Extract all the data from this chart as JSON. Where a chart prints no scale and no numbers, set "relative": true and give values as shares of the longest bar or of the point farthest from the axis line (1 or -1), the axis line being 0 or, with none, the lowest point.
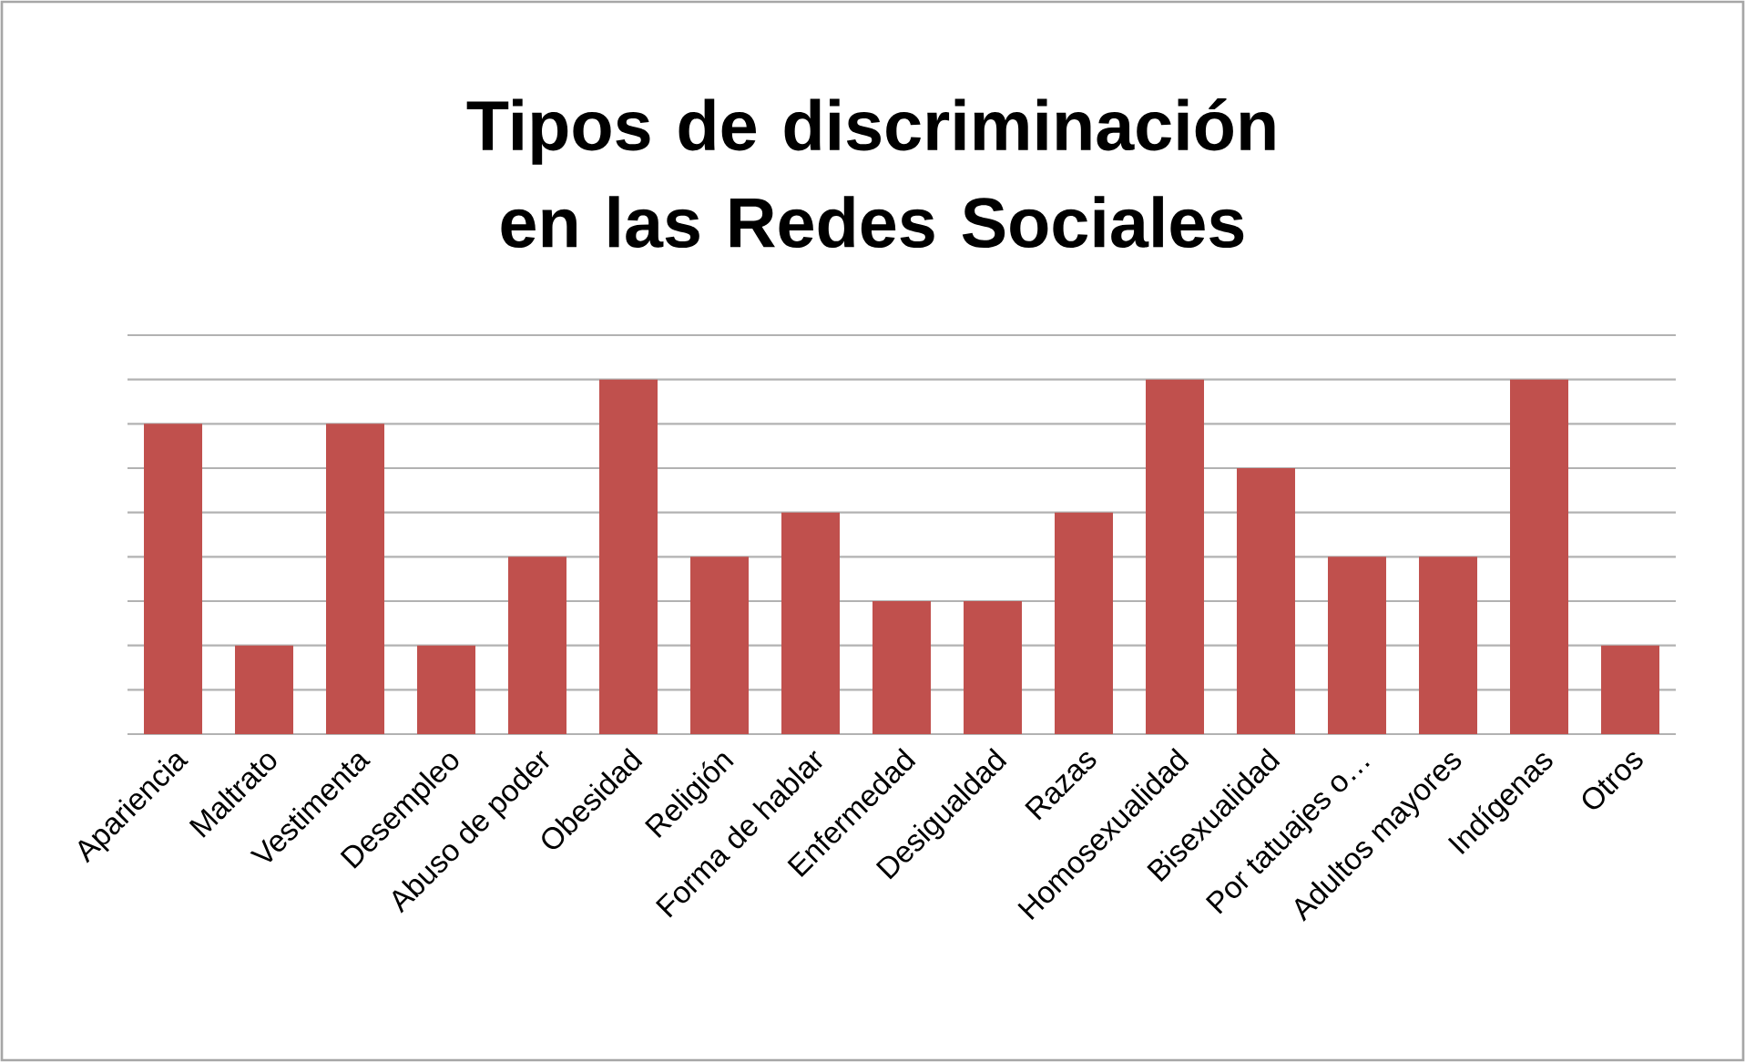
{
  "chart_data": {
    "type": "bar",
    "title": "Tipos de discriminación en las Redes Sociales",
    "categories": [
      "Apariencia",
      "Maltrato",
      "Vestimenta",
      "Desempleo",
      "Abuso de poder",
      "Obesidad",
      "Religión",
      "Forma de hablar",
      "Enfermedad",
      "Desigualdad",
      "Razas",
      "Homosexualidad",
      "Bisexualidad",
      "Por tatuajes o…",
      "Adultos mayores",
      "Indígenas",
      "Otros"
    ],
    "values": [
      0.875,
      0.25,
      0.875,
      0.25,
      0.5,
      1,
      0.5,
      0.625,
      0.375,
      0.375,
      0.625,
      1,
      0.75,
      0.5,
      0.5,
      1,
      0.25
    ],
    "color": "#c0504d",
    "relative": true,
    "grid": "y"
  }
}
